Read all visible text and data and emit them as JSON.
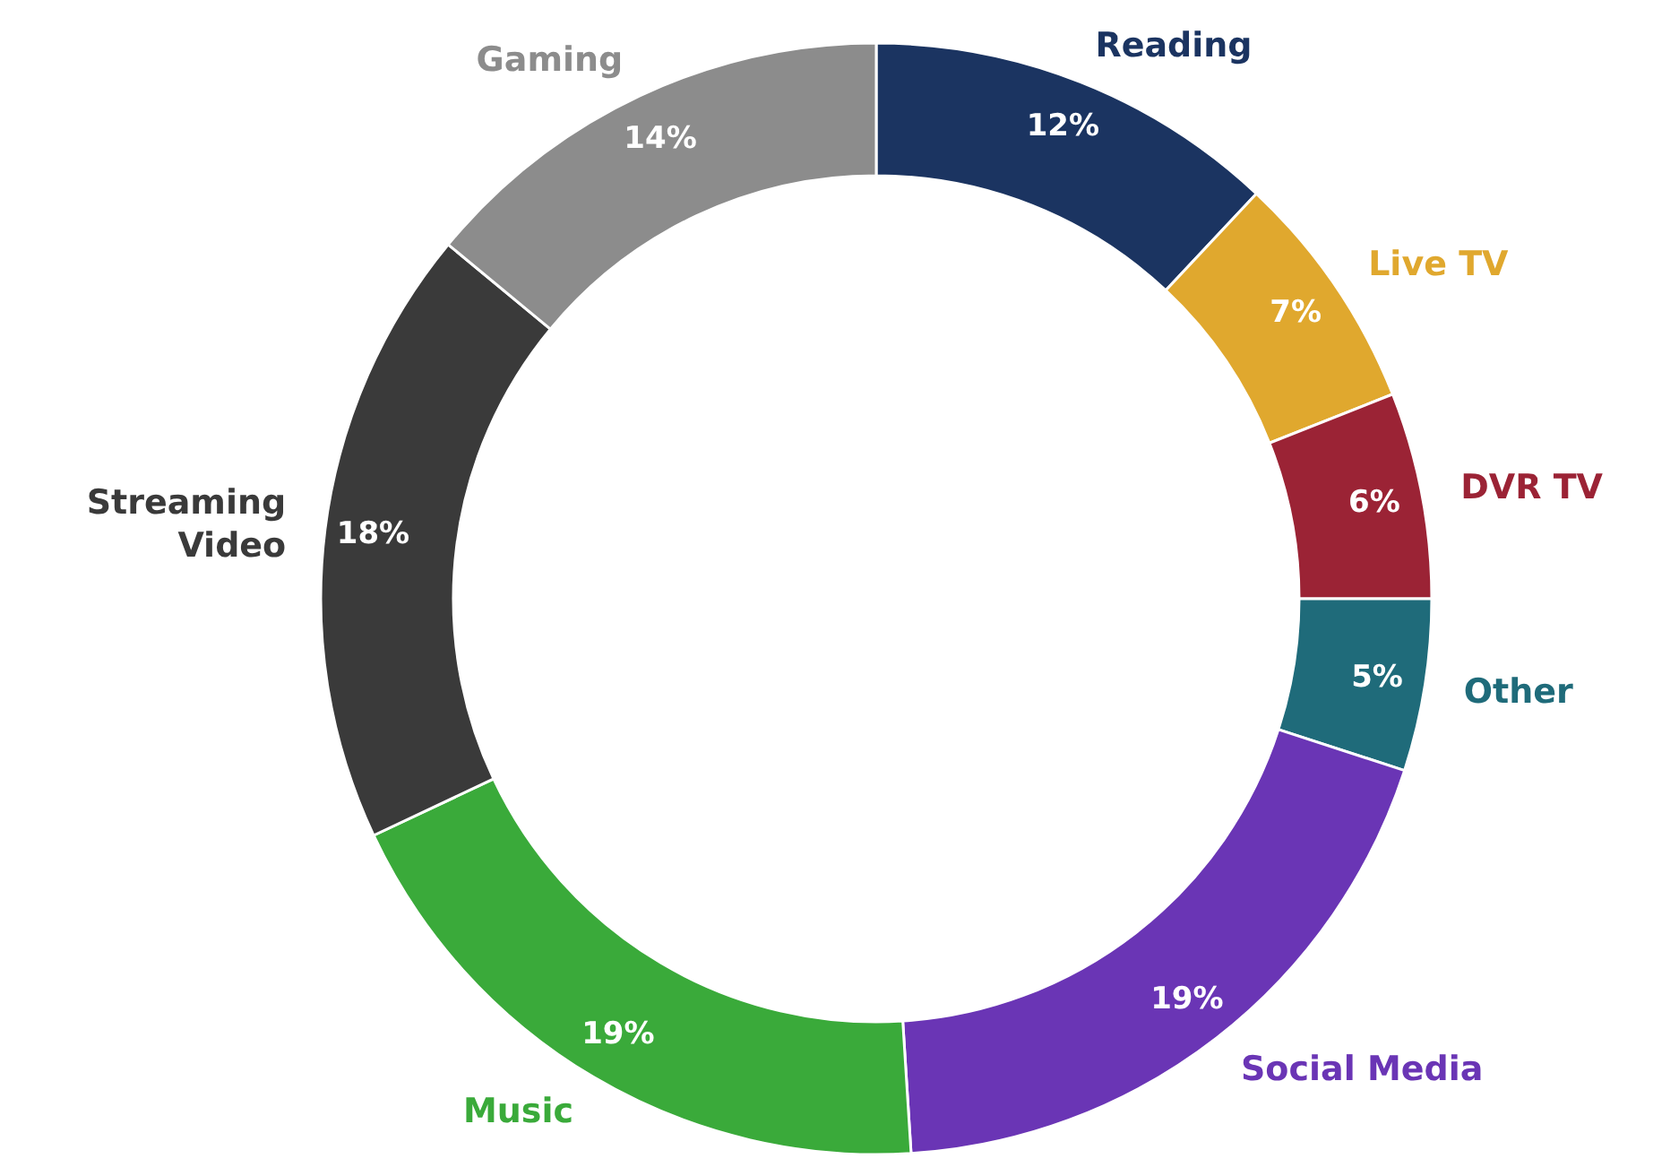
{
  "chart_data": {
    "type": "donut",
    "categories": [
      "Reading",
      "Live TV",
      "DVR TV",
      "Other",
      "Social Media",
      "Music",
      "Streaming Video",
      "Gaming"
    ],
    "values": [
      12,
      7,
      6,
      5,
      19,
      19,
      18,
      14
    ],
    "value_labels": [
      "12%",
      "7%",
      "6%",
      "5%",
      "19%",
      "19%",
      "18%",
      "14%"
    ],
    "colors": [
      "#1b3461",
      "#e0a82e",
      "#9b2335",
      "#1f6b7a",
      "#6a35b5",
      "#3aaa3a",
      "#3a3a3a",
      "#8c8c8c"
    ]
  }
}
